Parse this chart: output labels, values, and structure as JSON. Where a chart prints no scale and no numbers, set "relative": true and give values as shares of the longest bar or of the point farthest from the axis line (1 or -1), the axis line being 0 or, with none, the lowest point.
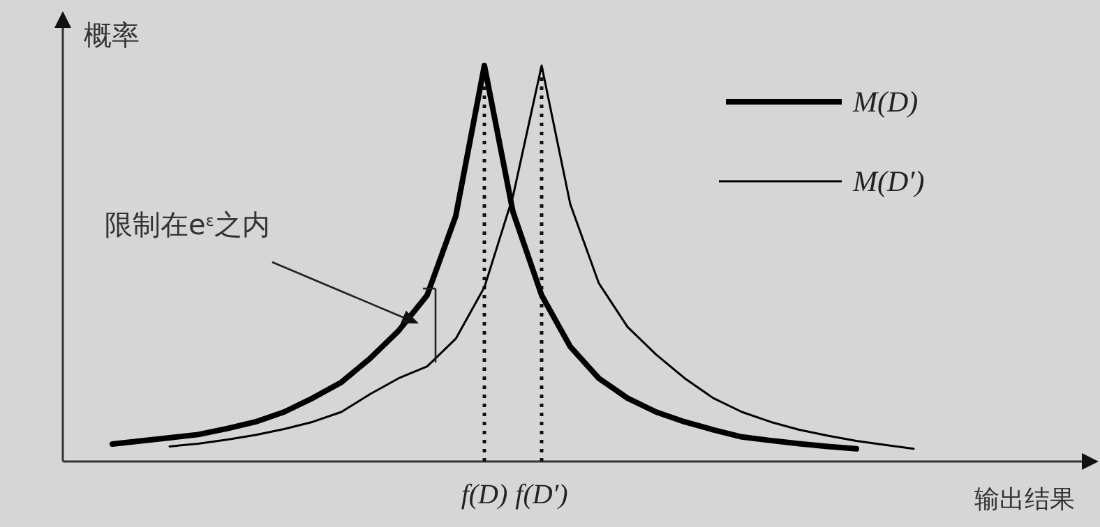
{
  "chart_data": {
    "type": "line",
    "relative": true,
    "ylabel": "概率",
    "xlabel": "输出结果",
    "categories": [
      null,
      null,
      null,
      null,
      null,
      null,
      null,
      null,
      null,
      null,
      null,
      null,
      null,
      null,
      "f(D)",
      null,
      "f(D′)",
      null,
      null,
      null,
      null,
      null,
      null,
      null,
      null,
      null,
      null,
      null,
      null,
      null,
      null
    ],
    "series": [
      {
        "name": "M(D)",
        "color": "#000000",
        "values": [
          null,
          0.044,
          0.052,
          0.06,
          0.068,
          0.083,
          0.1,
          0.125,
          0.16,
          0.2,
          0.26,
          0.33,
          0.42,
          0.62,
          1,
          0.63,
          0.42,
          0.29,
          0.21,
          0.16,
          0.125,
          0.1,
          0.08,
          0.062,
          0.053,
          0.045,
          0.038,
          0.032,
          null,
          null,
          null
        ]
      },
      {
        "name": "M(D′)",
        "color": "#000000",
        "values": [
          null,
          null,
          null,
          0.038,
          0.045,
          0.055,
          0.067,
          0.082,
          0.1,
          0.125,
          0.17,
          0.21,
          0.24,
          0.31,
          0.44,
          0.67,
          1,
          0.65,
          0.45,
          0.34,
          0.27,
          0.21,
          0.16,
          0.125,
          0.1,
          0.08,
          0.065,
          0.052,
          0.042,
          0.032,
          null
        ]
      }
    ],
    "ref_lines": [
      {
        "axis": "x",
        "value": "f(D)",
        "line_style": "dotted"
      },
      {
        "axis": "x",
        "value": "f(D′)",
        "line_style": "dotted"
      }
    ],
    "annotations": [
      "限制在e$^{ε}$之内"
    ],
    "legend": "top right"
  }
}
